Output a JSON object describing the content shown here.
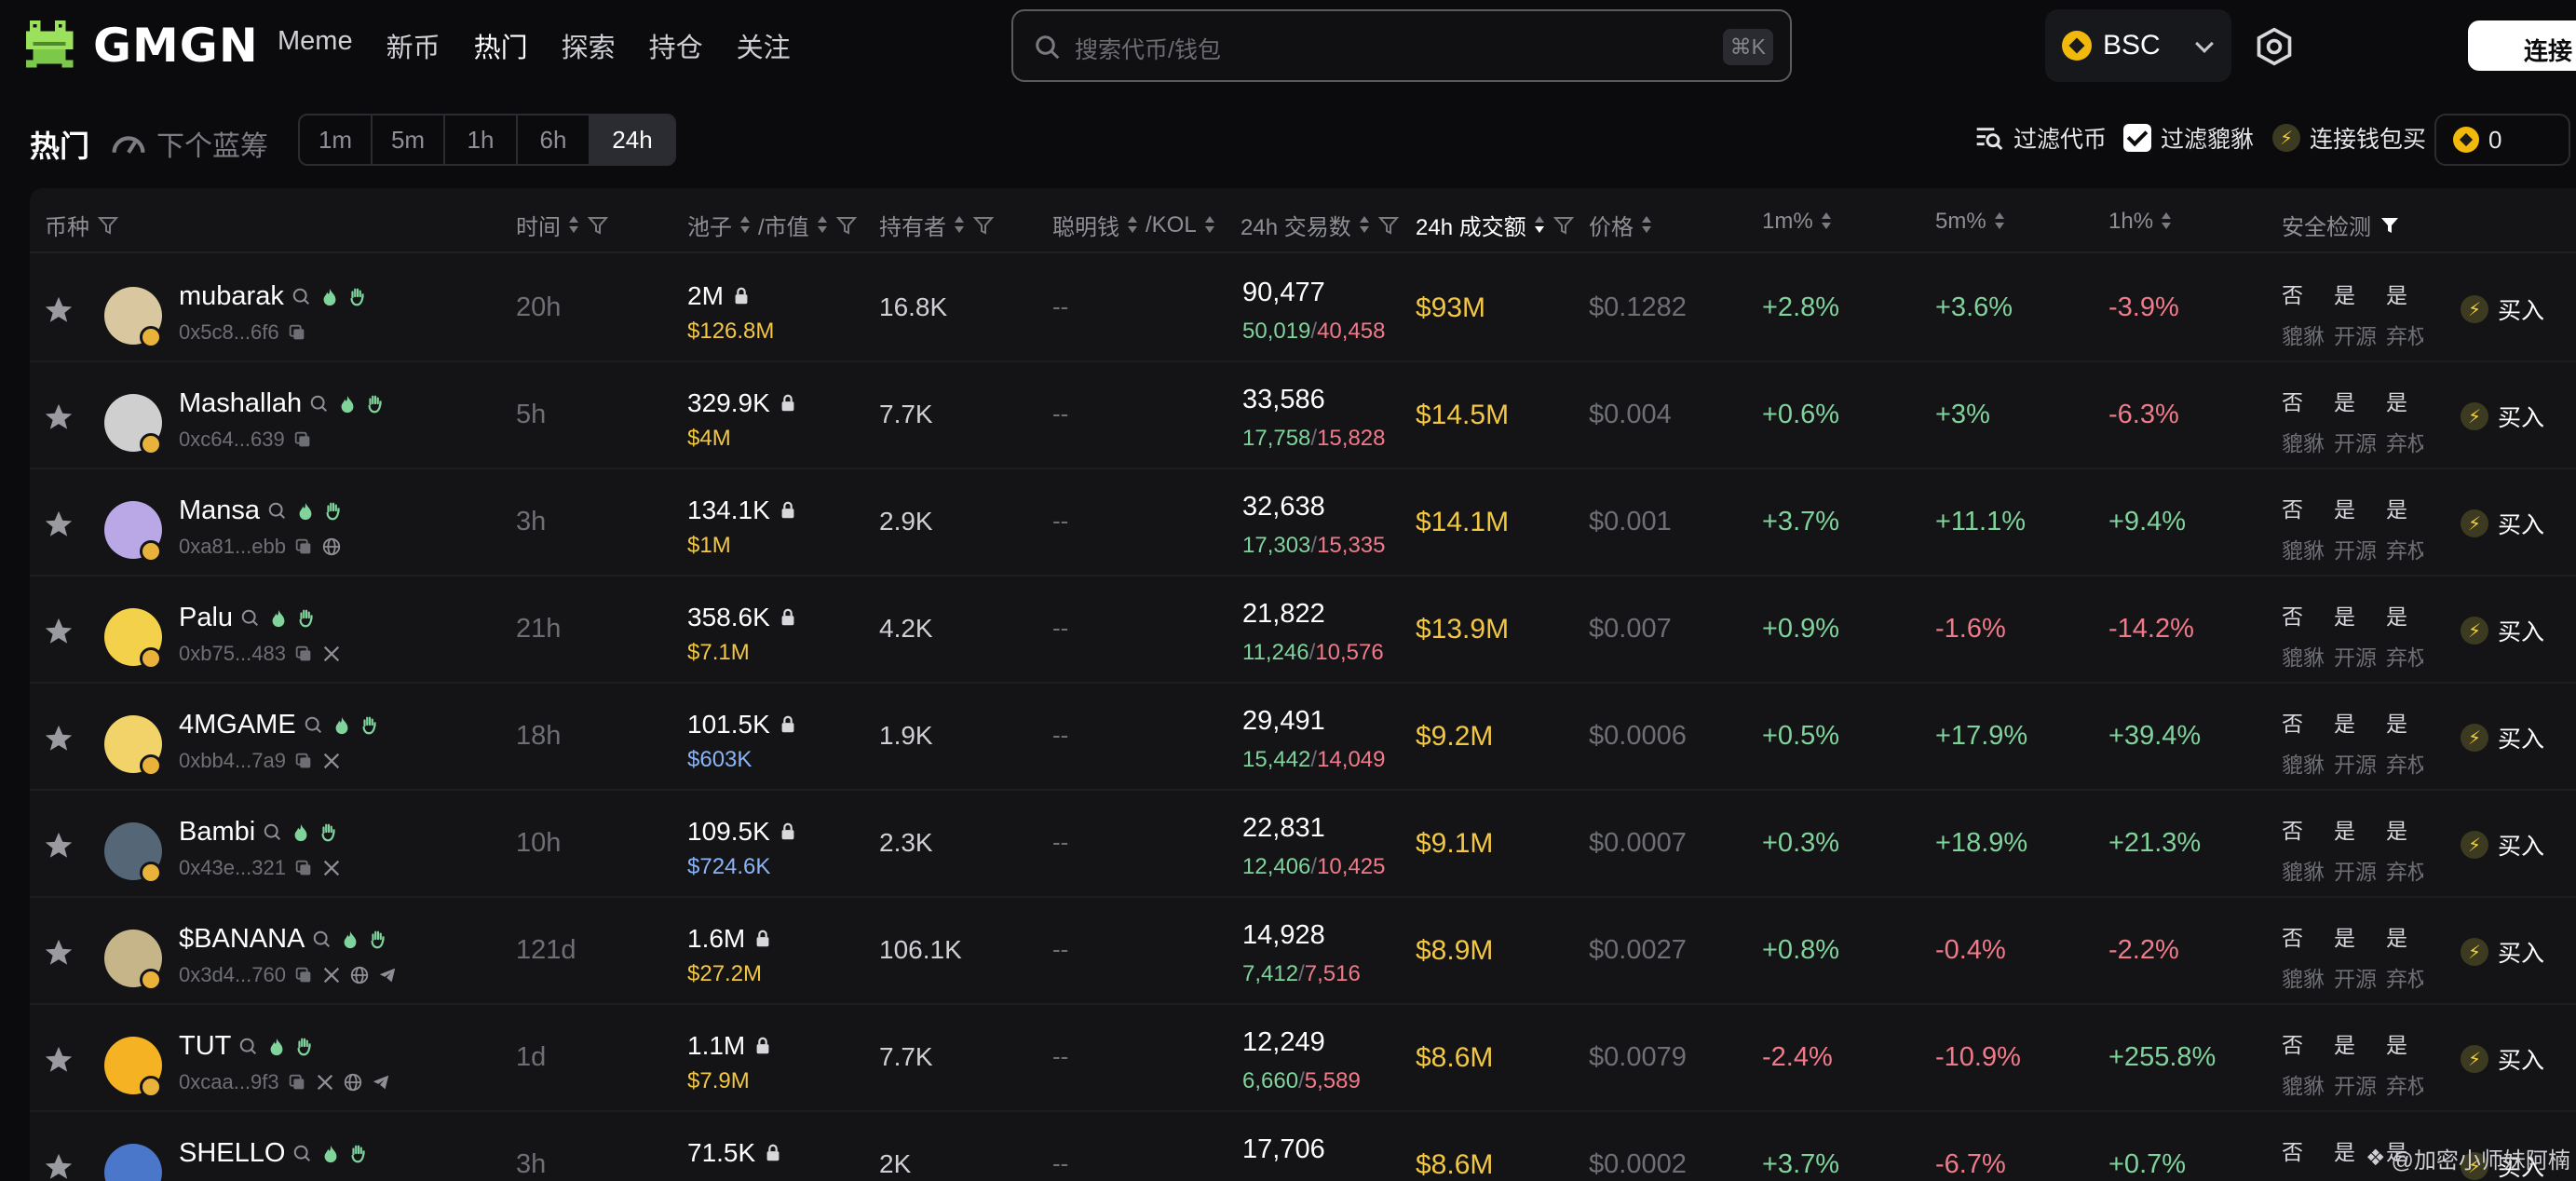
{
  "header": {
    "logo_text": "GMGN",
    "nav": [
      "Meme",
      "新币",
      "热门",
      "探索",
      "持仓",
      "关注"
    ],
    "active_nav": 2,
    "search_placeholder": "搜索代币/钱包",
    "search_shortcut": "⌘K",
    "chain": "BSC",
    "connect_label": "连接"
  },
  "filterbar": {
    "title": "热门",
    "next_bluechip": "下个蓝筹",
    "timeframes": [
      "1m",
      "5m",
      "1h",
      "6h",
      "24h"
    ],
    "active_timeframe": 4,
    "filter_tokens": "过滤代币",
    "filter_pixiu": "过滤貔貅",
    "quick_buy": "连接钱包买",
    "balance": "0"
  },
  "table": {
    "headers": {
      "token": "币种",
      "age": "时间",
      "pool_mcap": "池子",
      "mcap_suffix": "/市值",
      "holders": "持有者",
      "smart": "聪明钱",
      "kol_suffix": "/KOL",
      "txns": "24h 交易数",
      "volume": "24h 成交额",
      "price": "价格",
      "m1": "1m%",
      "m5": "5m%",
      "h1": "1h%",
      "security": "安全检测"
    },
    "security_labels": [
      "貔貅",
      "开源",
      "弃权"
    ],
    "buy_label": "买入",
    "rows": [
      {
        "name": "mubarak",
        "addr": "0x5c8...6f6",
        "socials": [],
        "age": "20h",
        "pool": "2M",
        "mcap": "$126.8M",
        "mcap_color": "gold",
        "holders": "16.8K",
        "smart": "--",
        "txns": "90,477",
        "buys": "50,019",
        "sells": "40,458",
        "volume": "$93M",
        "price": "$0.1282",
        "m1": "+2.8%",
        "m5": "+3.6%",
        "h1": "-3.9%",
        "sec": [
          "否",
          "是",
          "是"
        ]
      },
      {
        "name": "Mashallah",
        "addr": "0xc64...639",
        "socials": [],
        "age": "5h",
        "pool": "329.9K",
        "mcap": "$4M",
        "mcap_color": "gold",
        "holders": "7.7K",
        "smart": "--",
        "txns": "33,586",
        "buys": "17,758",
        "sells": "15,828",
        "volume": "$14.5M",
        "price": "$0.004",
        "m1": "+0.6%",
        "m5": "+3%",
        "h1": "-6.3%",
        "sec": [
          "否",
          "是",
          "是"
        ]
      },
      {
        "name": "Mansa",
        "addr": "0xa81...ebb",
        "socials": [
          "web"
        ],
        "age": "3h",
        "pool": "134.1K",
        "mcap": "$1M",
        "mcap_color": "gold",
        "holders": "2.9K",
        "smart": "--",
        "txns": "32,638",
        "buys": "17,303",
        "sells": "15,335",
        "volume": "$14.1M",
        "price": "$0.001",
        "m1": "+3.7%",
        "m5": "+11.1%",
        "h1": "+9.4%",
        "sec": [
          "否",
          "是",
          "是"
        ]
      },
      {
        "name": "Palu",
        "addr": "0xb75...483",
        "socials": [
          "x"
        ],
        "age": "21h",
        "pool": "358.6K",
        "mcap": "$7.1M",
        "mcap_color": "gold",
        "holders": "4.2K",
        "smart": "--",
        "txns": "21,822",
        "buys": "11,246",
        "sells": "10,576",
        "volume": "$13.9M",
        "price": "$0.007",
        "m1": "+0.9%",
        "m5": "-1.6%",
        "h1": "-14.2%",
        "sec": [
          "否",
          "是",
          "是"
        ]
      },
      {
        "name": "4MGAME",
        "addr": "0xbb4...7a9",
        "socials": [
          "x"
        ],
        "age": "18h",
        "pool": "101.5K",
        "mcap": "$603K",
        "mcap_color": "blue",
        "holders": "1.9K",
        "smart": "--",
        "txns": "29,491",
        "buys": "15,442",
        "sells": "14,049",
        "volume": "$9.2M",
        "price": "$0.0006",
        "m1": "+0.5%",
        "m5": "+17.9%",
        "h1": "+39.4%",
        "sec": [
          "否",
          "是",
          "是"
        ]
      },
      {
        "name": "Bambi",
        "addr": "0x43e...321",
        "socials": [
          "x"
        ],
        "age": "10h",
        "pool": "109.5K",
        "mcap": "$724.6K",
        "mcap_color": "blue",
        "holders": "2.3K",
        "smart": "--",
        "txns": "22,831",
        "buys": "12,406",
        "sells": "10,425",
        "volume": "$9.1M",
        "price": "$0.0007",
        "m1": "+0.3%",
        "m5": "+18.9%",
        "h1": "+21.3%",
        "sec": [
          "否",
          "是",
          "是"
        ]
      },
      {
        "name": "$BANANA",
        "addr": "0x3d4...760",
        "socials": [
          "x",
          "web",
          "tg"
        ],
        "age": "121d",
        "pool": "1.6M",
        "mcap": "$27.2M",
        "mcap_color": "gold",
        "holders": "106.1K",
        "smart": "--",
        "txns": "14,928",
        "buys": "7,412",
        "sells": "7,516",
        "volume": "$8.9M",
        "price": "$0.0027",
        "m1": "+0.8%",
        "m5": "-0.4%",
        "h1": "-2.2%",
        "sec": [
          "否",
          "是",
          "是"
        ]
      },
      {
        "name": "TUT",
        "addr": "0xcaa...9f3",
        "socials": [
          "x",
          "web",
          "tg"
        ],
        "age": "1d",
        "pool": "1.1M",
        "mcap": "$7.9M",
        "mcap_color": "gold",
        "holders": "7.7K",
        "smart": "--",
        "txns": "12,249",
        "buys": "6,660",
        "sells": "5,589",
        "volume": "$8.6M",
        "price": "$0.0079",
        "m1": "-2.4%",
        "m5": "-10.9%",
        "h1": "+255.8%",
        "sec": [
          "否",
          "是",
          "是"
        ]
      },
      {
        "name": "SHELLO",
        "addr": "",
        "socials": [],
        "age": "3h",
        "pool": "71.5K",
        "mcap": "",
        "mcap_color": "gold",
        "holders": "2K",
        "smart": "--",
        "txns": "17,706",
        "buys": "",
        "sells": "",
        "volume": "$8.6M",
        "price": "$0.0002",
        "m1": "+3.7%",
        "m5": "-6.7%",
        "h1": "+0.7%",
        "sec": [
          "否",
          "是",
          "是"
        ]
      }
    ]
  },
  "watermark": "@加密小师妹阿楠",
  "colors": {
    "background": "#0b0b0d",
    "panel": "#141417",
    "positive": "#7fd39b",
    "negative": "#f07a8a",
    "gold": "#f2c744",
    "blue": "#8ab4f8"
  }
}
